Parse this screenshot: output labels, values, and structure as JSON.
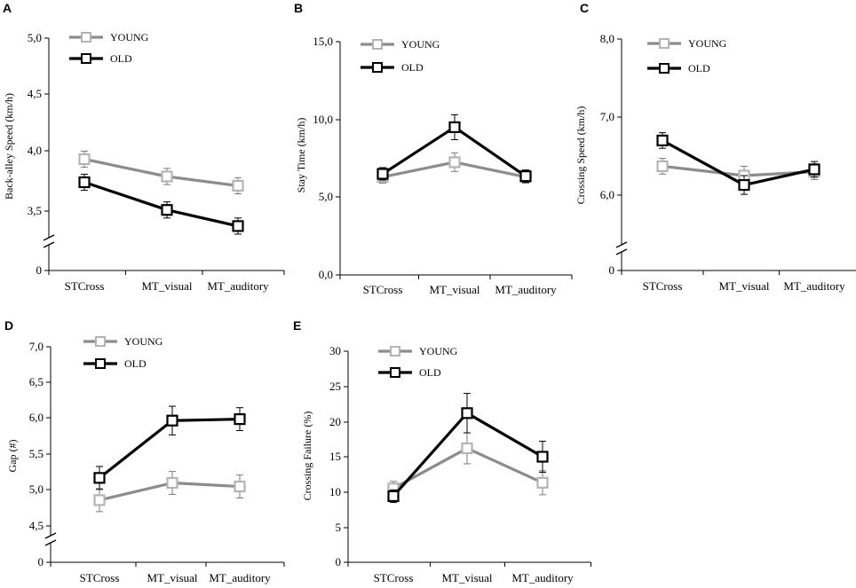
{
  "colors": {
    "young": "#8c8c8c",
    "old": "#000000",
    "marker_young": "#b4b4b4",
    "marker_old": "#000000"
  },
  "chart_data": [
    {
      "panel": "A",
      "type": "line",
      "ylabel": "Back-alley Speed (km/h)",
      "categories": [
        "STCross",
        "MT_visual",
        "MT_auditory"
      ],
      "y_ticks": [
        "5,0",
        "4,5",
        "4,0",
        "3,5",
        "0"
      ],
      "axis_break": true,
      "ylim": [
        3.3,
        5.0
      ],
      "series": [
        {
          "name": "YOUNG",
          "values": [
            3.95,
            3.8,
            3.72
          ],
          "errors": [
            0.07,
            0.07,
            0.07
          ]
        },
        {
          "name": "OLD",
          "values": [
            3.75,
            3.51,
            3.37
          ],
          "errors": [
            0.07,
            0.07,
            0.07
          ]
        }
      ]
    },
    {
      "panel": "B",
      "type": "line",
      "ylabel": "Stay Time (km/h)",
      "categories": [
        "STCross",
        "MT_visual",
        "MT_auditory"
      ],
      "y_ticks": [
        "15,0",
        "10,0",
        "5,0",
        "0,0"
      ],
      "axis_break": false,
      "ylim": [
        0,
        15
      ],
      "series": [
        {
          "name": "YOUNG",
          "values": [
            6.3,
            7.25,
            6.3
          ],
          "errors": [
            0.4,
            0.6,
            0.4
          ]
        },
        {
          "name": "OLD",
          "values": [
            6.5,
            9.5,
            6.35
          ],
          "errors": [
            0.4,
            0.8,
            0.4
          ]
        }
      ]
    },
    {
      "panel": "C",
      "type": "line",
      "ylabel": "Crossing Speed (km/h)",
      "categories": [
        "STCross",
        "MT_visual",
        "MT_auditory"
      ],
      "y_ticks": [
        "8,0",
        "7,0",
        "6,0",
        "0"
      ],
      "axis_break": true,
      "ylim": [
        5.5,
        8.0
      ],
      "series": [
        {
          "name": "YOUNG",
          "values": [
            6.37,
            6.25,
            6.3
          ],
          "errors": [
            0.1,
            0.12,
            0.1
          ]
        },
        {
          "name": "OLD",
          "values": [
            6.7,
            6.13,
            6.33
          ],
          "errors": [
            0.1,
            0.12,
            0.1
          ]
        }
      ]
    },
    {
      "panel": "D",
      "type": "line",
      "ylabel": "Gap (#)",
      "categories": [
        "STCross",
        "MT_visual",
        "MT_auditory"
      ],
      "y_ticks": [
        "7,0",
        "6,5",
        "6,0",
        "5,5",
        "5,0",
        "4,5",
        "0"
      ],
      "axis_break": true,
      "ylim": [
        4.3,
        7.0
      ],
      "series": [
        {
          "name": "YOUNG",
          "values": [
            4.86,
            5.1,
            5.05
          ],
          "errors": [
            0.16,
            0.16,
            0.16
          ]
        },
        {
          "name": "OLD",
          "values": [
            5.17,
            5.97,
            5.99
          ],
          "errors": [
            0.16,
            0.2,
            0.16
          ]
        }
      ]
    },
    {
      "panel": "E",
      "type": "line",
      "ylabel": "Crossing Failure (%)",
      "categories": [
        "STCross",
        "MT_visual",
        "MT_auditory"
      ],
      "y_ticks": [
        "30",
        "25",
        "20",
        "15",
        "10",
        "5",
        "0"
      ],
      "axis_break": false,
      "ylim": [
        0,
        30
      ],
      "series": [
        {
          "name": "YOUNG",
          "values": [
            10.5,
            16.2,
            11.3
          ],
          "errors": [
            1.0,
            2.2,
            1.7
          ]
        },
        {
          "name": "OLD",
          "values": [
            9.4,
            21.2,
            15.0
          ],
          "errors": [
            0.9,
            2.8,
            2.2
          ]
        }
      ]
    }
  ]
}
